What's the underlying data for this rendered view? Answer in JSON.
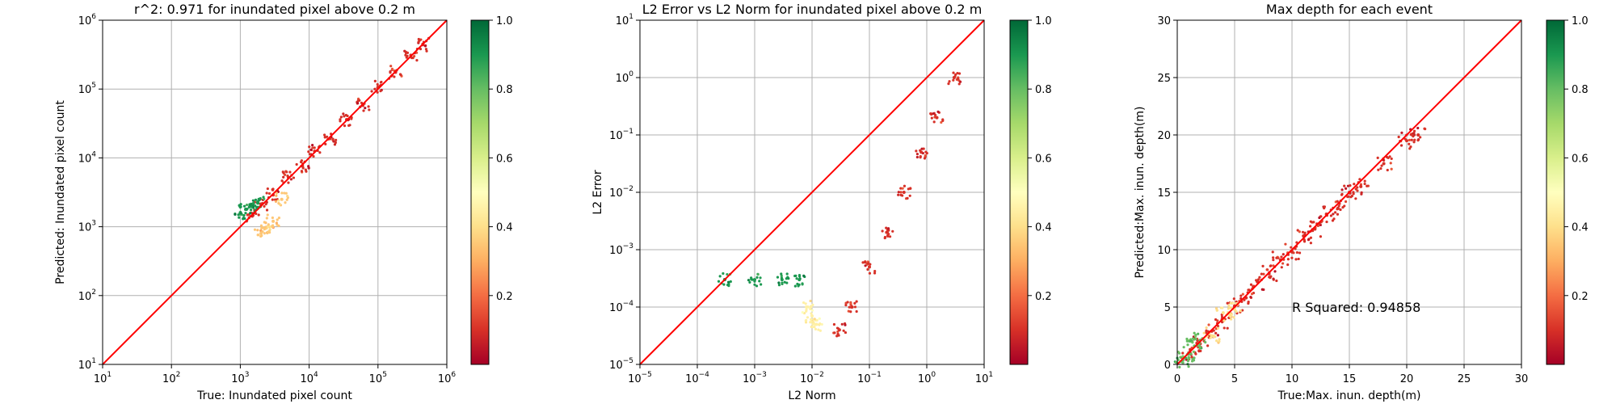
{
  "chart_data": [
    {
      "type": "scatter",
      "title": "r^2: 0.971 for inundated pixel above 0.2 m",
      "xlabel": "True: Inundated pixel count",
      "ylabel": "Predicted: Inundated pixel count",
      "xscale": "log",
      "yscale": "log",
      "xlim": [
        10,
        1000000
      ],
      "ylim": [
        10,
        1000000
      ],
      "xticks": [
        {
          "base": "10",
          "exp": "1"
        },
        {
          "base": "10",
          "exp": "2"
        },
        {
          "base": "10",
          "exp": "3"
        },
        {
          "base": "10",
          "exp": "4"
        },
        {
          "base": "10",
          "exp": "5"
        },
        {
          "base": "10",
          "exp": "6"
        }
      ],
      "yticks": [
        {
          "base": "10",
          "exp": "1"
        },
        {
          "base": "10",
          "exp": "2"
        },
        {
          "base": "10",
          "exp": "3"
        },
        {
          "base": "10",
          "exp": "4"
        },
        {
          "base": "10",
          "exp": "5"
        },
        {
          "base": "10",
          "exp": "6"
        }
      ],
      "grid": true,
      "reference_line": "y = x",
      "reference_color": "#ff0000",
      "colormap": "RdYlGn",
      "colorbar_range": [
        0,
        1
      ],
      "colorbar_ticks": [
        "0.2",
        "0.4",
        "0.6",
        "0.8",
        "1.0"
      ],
      "series": [
        {
          "x": [
            1500,
            2000,
            3000,
            5000,
            8000,
            12000,
            20000,
            35000,
            60000,
            100000,
            180000,
            300000,
            450000
          ],
          "y": [
            1450,
            2100,
            2900,
            5200,
            7600,
            12500,
            19000,
            36000,
            58000,
            105000,
            175000,
            310000,
            440000
          ],
          "color_value": 0.1
        },
        {
          "x": [
            1000,
            1200,
            1500,
            1800
          ],
          "y": [
            1600,
            1800,
            2000,
            2200
          ],
          "color_value": 0.9
        },
        {
          "x": [
            2000,
            2500,
            3000,
            4000
          ],
          "y": [
            800,
            1000,
            1200,
            2500
          ],
          "color_value": 0.35
        }
      ]
    },
    {
      "type": "scatter",
      "title": "L2 Error vs L2 Norm for inundated pixel above 0.2 m",
      "xlabel": "L2 Norm",
      "ylabel": "L2 Error",
      "xscale": "log",
      "yscale": "log",
      "xlim": [
        1e-05,
        10
      ],
      "ylim": [
        1e-05,
        10
      ],
      "xticks": [
        {
          "base": "10",
          "exp": "−5"
        },
        {
          "base": "10",
          "exp": "−4"
        },
        {
          "base": "10",
          "exp": "−3"
        },
        {
          "base": "10",
          "exp": "−2"
        },
        {
          "base": "10",
          "exp": "−1"
        },
        {
          "base": "10",
          "exp": "0"
        },
        {
          "base": "10",
          "exp": "1"
        }
      ],
      "yticks": [
        {
          "base": "10",
          "exp": "−5"
        },
        {
          "base": "10",
          "exp": "−4"
        },
        {
          "base": "10",
          "exp": "−3"
        },
        {
          "base": "10",
          "exp": "−2"
        },
        {
          "base": "10",
          "exp": "−1"
        },
        {
          "base": "10",
          "exp": "0"
        },
        {
          "base": "10",
          "exp": "1"
        }
      ],
      "grid": true,
      "reference_line": "y = x",
      "reference_color": "#ff0000",
      "colormap": "RdYlGn",
      "colorbar_range": [
        0,
        1
      ],
      "colorbar_ticks": [
        "0.2",
        "0.4",
        "0.6",
        "0.8",
        "1.0"
      ],
      "series": [
        {
          "x": [
            0.03,
            0.05,
            0.1,
            0.2,
            0.4,
            0.8,
            1.5,
            3
          ],
          "y": [
            4e-05,
            0.0001,
            0.0005,
            0.002,
            0.01,
            0.05,
            0.2,
            1
          ],
          "color_value": 0.1
        },
        {
          "x": [
            0.0003,
            0.001,
            0.003,
            0.006
          ],
          "y": [
            0.0003,
            0.0003,
            0.0003,
            0.0003
          ],
          "color_value": 0.9
        },
        {
          "x": [
            0.008,
            0.01,
            0.012
          ],
          "y": [
            0.0001,
            7e-05,
            5e-05
          ],
          "color_value": 0.45
        }
      ]
    },
    {
      "type": "scatter",
      "title": "Max depth for each event",
      "xlabel": "True:Max. inun. depth(m)",
      "ylabel": "Predicted:Max. inun. depth(m)",
      "xlim": [
        0,
        30
      ],
      "ylim": [
        0,
        30
      ],
      "xticks": [
        "0",
        "5",
        "10",
        "15",
        "20",
        "25",
        "30"
      ],
      "yticks": [
        "0",
        "5",
        "10",
        "15",
        "20",
        "25",
        "30"
      ],
      "grid": true,
      "reference_line": "y = x",
      "reference_color": "#ff0000",
      "annotation": "R Squared: 0.94858",
      "annotation_value": [
        10,
        5
      ],
      "colormap": "RdYlGn",
      "colorbar_range": [
        0,
        1
      ],
      "colorbar_ticks": [
        "0.2",
        "0.4",
        "0.6",
        "0.8",
        "1.0"
      ],
      "series": [
        {
          "x": [
            1,
            2,
            3,
            4,
            5,
            6,
            7,
            8,
            9,
            10,
            11,
            12,
            13,
            14,
            15,
            16,
            18,
            20,
            21
          ],
          "y": [
            1,
            1.8,
            2.9,
            3.8,
            5.1,
            5.8,
            7.2,
            7.9,
            9.1,
            9.8,
            11.2,
            11.8,
            13.1,
            13.6,
            15,
            15.5,
            17.5,
            19.5,
            20
          ],
          "color_value": 0.1
        },
        {
          "x": [
            0.5,
            1,
            1.5,
            2
          ],
          "y": [
            0.4,
            0.9,
            1.6,
            2.1
          ],
          "color_value": 0.8
        },
        {
          "x": [
            3,
            4,
            5
          ],
          "y": [
            2.5,
            4.5,
            4.8
          ],
          "color_value": 0.4
        }
      ]
    }
  ]
}
